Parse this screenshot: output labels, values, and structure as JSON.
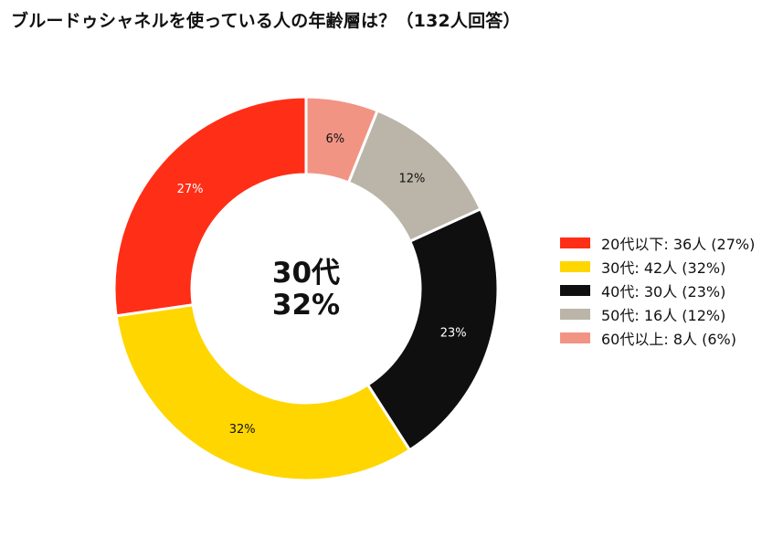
{
  "chart_data": {
    "type": "pie",
    "title": "ブルードゥシャネルを使っている人の年齢層は？（132人回答）",
    "center_label": [
      "30代",
      "32%"
    ],
    "categories": [
      "20代以下",
      "30代",
      "40代",
      "50代",
      "60代以上"
    ],
    "values": [
      36,
      42,
      30,
      16,
      8
    ],
    "percent_labels": [
      "27%",
      "32%",
      "23%",
      "12%",
      "6%"
    ],
    "legend_labels": [
      "20代以下:  36人 (27%)",
      "30代:  42人 (32%)",
      "40代:  30人 (23%)",
      "50代:  16人 (12%)",
      "60代以上:  8人 (6%)"
    ],
    "colors": [
      "#ff2e17",
      "#ffd600",
      "#0f0f0f",
      "#bab5a8",
      "#f29484"
    ],
    "label_colors": [
      "#ffffff",
      "#111111",
      "#ffffff",
      "#111111",
      "#111111"
    ],
    "legend_position": "right"
  }
}
